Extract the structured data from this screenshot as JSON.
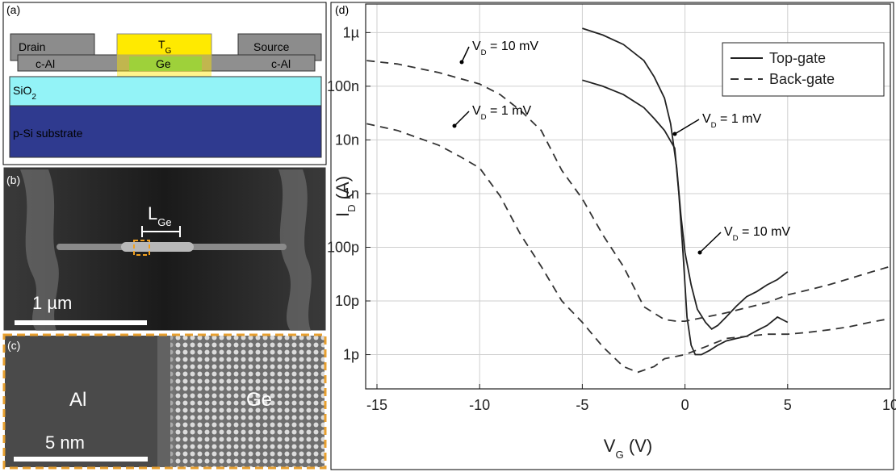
{
  "panels": {
    "a": {
      "label": "(a)",
      "drain": "Drain",
      "tg": {
        "main": "T",
        "sub": "G"
      },
      "source": "Source",
      "cal_left": "c-Al",
      "ge": "Ge",
      "cal_right": "c-Al",
      "sio2": {
        "main": "SiO",
        "sub": "2"
      },
      "substrate": "p-Si substrate"
    },
    "b": {
      "label": "(b)",
      "lge": {
        "main": "L",
        "sub": "Ge"
      },
      "scale": "1 µm"
    },
    "c": {
      "label": "(c)",
      "al": "Al",
      "ge": "Ge",
      "scale": "5 nm"
    }
  },
  "chart_data": {
    "type": "line",
    "panel_label": "(d)",
    "log_y": true,
    "grid": true,
    "legend": "upper right",
    "x_label": {
      "main": "V",
      "sub": "G",
      "rest": " (V)"
    },
    "y_label": {
      "main": "I",
      "sub": "D",
      "rest": " (A)"
    },
    "xlim": [
      -15.55,
      10
    ],
    "xticks": [
      -15,
      -10,
      -5,
      0,
      5,
      10
    ],
    "ylim": [
      2.3e-13,
      3.4e-06
    ],
    "yticks": [
      {
        "value": 1e-12,
        "label": "1p"
      },
      {
        "value": 1e-11,
        "label": "10p"
      },
      {
        "value": 1e-10,
        "label": "100p"
      },
      {
        "value": 1e-09,
        "label": "1n"
      },
      {
        "value": 1e-08,
        "label": "10n"
      },
      {
        "value": 1e-07,
        "label": "100n"
      },
      {
        "value": 1e-06,
        "label": "1µ"
      }
    ],
    "series": [
      {
        "name": "Top-gate",
        "color": "#222222",
        "dash": false,
        "x": [
          -5,
          -4,
          -3,
          -2,
          -1.5,
          -1,
          -0.7,
          -0.4,
          -0.2,
          0,
          0.3,
          0.6,
          1,
          1.3,
          1.6,
          2,
          2.5,
          3,
          3.5,
          4,
          4.5,
          5
        ],
        "values": [
          1.2e-06,
          9e-07,
          6e-07,
          3e-07,
          1.5e-07,
          6e-08,
          2e-08,
          3e-09,
          4e-10,
          8e-11,
          2e-11,
          7e-12,
          4e-12,
          3e-12,
          3.5e-12,
          5e-12,
          8e-12,
          1.2e-11,
          1.5e-11,
          2e-11,
          2.5e-11,
          3.5e-11
        ]
      },
      {
        "name": "Top-gate",
        "color": "#222222",
        "dash": false,
        "x": [
          -5,
          -4,
          -3,
          -2,
          -1.5,
          -1,
          -0.5,
          -0.3,
          -0.1,
          0.1,
          0.3,
          0.5,
          0.8,
          1.2,
          1.6,
          2,
          2.5,
          3,
          3.5,
          4,
          4.5,
          5
        ],
        "values": [
          1.3e-07,
          1e-07,
          7e-08,
          4e-08,
          2.5e-08,
          1.5e-08,
          7e-09,
          1e-09,
          8e-11,
          5e-12,
          1.5e-12,
          1e-12,
          1e-12,
          1.2e-12,
          1.5e-12,
          1.8e-12,
          2e-12,
          2.2e-12,
          2.8e-12,
          3.5e-12,
          5e-12,
          4e-12
        ]
      },
      {
        "name": "Back-gate",
        "color": "#333333",
        "dash": true,
        "x": [
          -15.5,
          -14,
          -12,
          -10,
          -9,
          -8,
          -7,
          -6,
          -5,
          -4,
          -3,
          -2,
          -1,
          -0.4,
          0,
          1,
          2,
          3,
          4,
          5,
          6,
          7,
          8,
          9,
          10
        ],
        "values": [
          3e-07,
          2.6e-07,
          1.8e-07,
          1.1e-07,
          7e-08,
          3.5e-08,
          1.5e-08,
          2.7e-09,
          8e-10,
          1.7e-10,
          4.4e-11,
          7.8e-12,
          4.5e-12,
          4.2e-12,
          4.2e-12,
          5e-12,
          6e-12,
          7.5e-12,
          9.3e-12,
          1.3e-11,
          1.6e-11,
          2e-11,
          2.6e-11,
          3.4e-11,
          4.4e-11
        ]
      },
      {
        "name": "Back-gate",
        "color": "#333333",
        "dash": true,
        "x": [
          -15.5,
          -14,
          -12,
          -11,
          -10,
          -9,
          -8,
          -7,
          -6,
          -5,
          -4,
          -3,
          -2.3,
          -1.5,
          -1,
          0,
          1,
          2,
          3,
          4,
          5,
          6,
          7,
          8,
          9,
          10
        ],
        "values": [
          2e-08,
          1.5e-08,
          8e-09,
          5e-09,
          3e-09,
          9e-10,
          1.7e-10,
          4.4e-11,
          1e-11,
          4e-12,
          1.4e-12,
          6e-13,
          4.7e-13,
          6e-13,
          8.4e-13,
          1e-12,
          1.4e-12,
          2e-12,
          2.2e-12,
          2.4e-12,
          2.4e-12,
          2.6e-12,
          2.9e-12,
          3.3e-12,
          4e-12,
          4.7e-12
        ]
      }
    ],
    "annotations": [
      {
        "main": "V",
        "sub": "D",
        "rest": " = 10 mV"
      },
      {
        "main": "V",
        "sub": "D",
        "rest": " = 1 mV"
      },
      {
        "main": "V",
        "sub": "D",
        "rest": " = 1 mV"
      },
      {
        "main": "V",
        "sub": "D",
        "rest": " = 10 mV"
      }
    ]
  }
}
